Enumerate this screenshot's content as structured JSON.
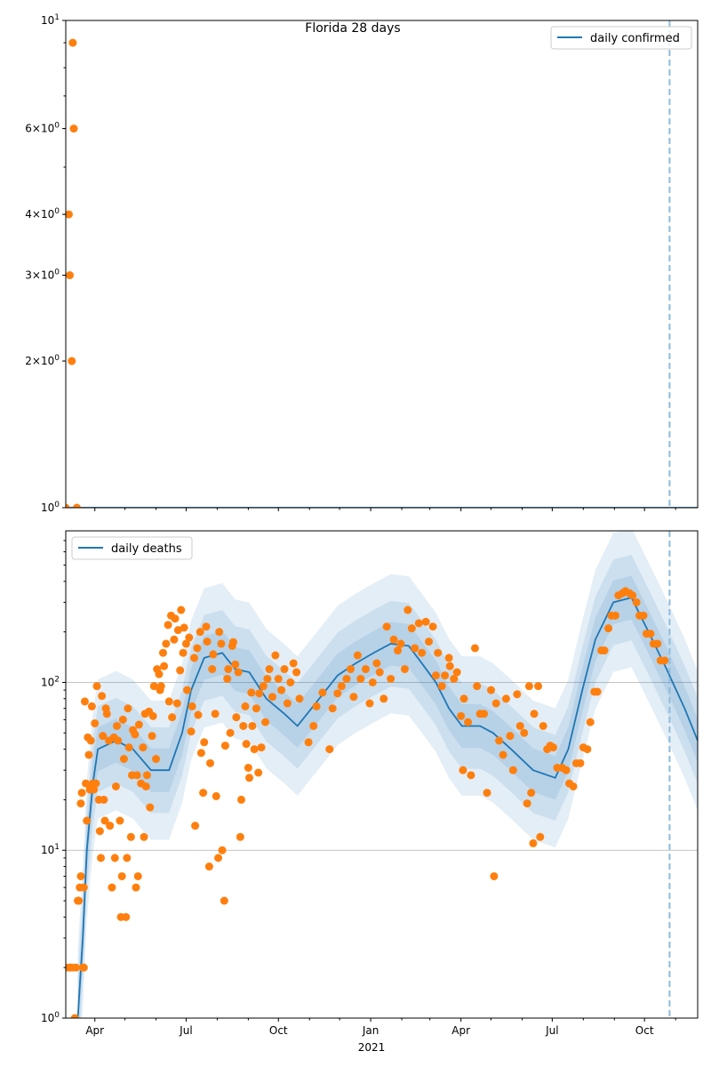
{
  "chart_data": [
    {
      "type": "scatter+line",
      "title": "Florida 28 days",
      "yscale": "log",
      "ylim": [
        1,
        10
      ],
      "xlim_days_since_2020_03_01": [
        2,
        632
      ],
      "legend": {
        "label": "daily confirmed",
        "placement": "top-right"
      },
      "yticks": [
        {
          "value": 10,
          "base": "10",
          "exp": "1"
        },
        {
          "value": 6,
          "base": "6×10",
          "exp": "0"
        },
        {
          "value": 4,
          "base": "4×10",
          "exp": "0"
        },
        {
          "value": 3,
          "base": "3×10",
          "exp": "0"
        },
        {
          "value": 2,
          "base": "2×10",
          "exp": "0"
        },
        {
          "value": 1,
          "base": "10",
          "exp": "0"
        }
      ],
      "line": [
        [
          2,
          1
        ],
        [
          632,
          1
        ]
      ],
      "bands": [],
      "points": [
        [
          2,
          1
        ],
        [
          5,
          4
        ],
        [
          6,
          3
        ],
        [
          8,
          2
        ],
        [
          9,
          9
        ],
        [
          10,
          6
        ],
        [
          13,
          1
        ]
      ],
      "vline_day": 604
    },
    {
      "type": "scatter+line",
      "title": "",
      "yscale": "log",
      "ylim": [
        1,
        800
      ],
      "xlim_days_since_2020_03_01": [
        2,
        632
      ],
      "legend": {
        "label": "daily deaths",
        "placement": "top-left"
      },
      "grid": "horizontal-major",
      "yticks": [
        {
          "value": 100,
          "base": "10",
          "exp": "2"
        },
        {
          "value": 10,
          "base": "10",
          "exp": "1"
        },
        {
          "value": 1,
          "base": "10",
          "exp": "0"
        }
      ],
      "line": [
        [
          14,
          1
        ],
        [
          19,
          3
        ],
        [
          23,
          10
        ],
        [
          29,
          25
        ],
        [
          34,
          40
        ],
        [
          52,
          45
        ],
        [
          69,
          40
        ],
        [
          87,
          30
        ],
        [
          105,
          30
        ],
        [
          118,
          50
        ],
        [
          127,
          90
        ],
        [
          140,
          140
        ],
        [
          158,
          150
        ],
        [
          171,
          120
        ],
        [
          185,
          115
        ],
        [
          202,
          80
        ],
        [
          220,
          65
        ],
        [
          233,
          55
        ],
        [
          251,
          75
        ],
        [
          273,
          110
        ],
        [
          291,
          130
        ],
        [
          309,
          150
        ],
        [
          326,
          170
        ],
        [
          344,
          165
        ],
        [
          357,
          130
        ],
        [
          371,
          100
        ],
        [
          384,
          70
        ],
        [
          397,
          55
        ],
        [
          415,
          55
        ],
        [
          428,
          50
        ],
        [
          446,
          40
        ],
        [
          468,
          30
        ],
        [
          490,
          27
        ],
        [
          503,
          40
        ],
        [
          517,
          90
        ],
        [
          530,
          180
        ],
        [
          548,
          300
        ],
        [
          566,
          320
        ],
        [
          583,
          200
        ],
        [
          601,
          120
        ],
        [
          619,
          70
        ],
        [
          632,
          45
        ]
      ],
      "band_factors": [
        1.35,
        1.8,
        2.6
      ],
      "points": [
        [
          2,
          2
        ],
        [
          6,
          2
        ],
        [
          8,
          2
        ],
        [
          11,
          1
        ],
        [
          12,
          2
        ],
        [
          14,
          5
        ],
        [
          15,
          5
        ],
        [
          16,
          6
        ],
        [
          17,
          7
        ],
        [
          17,
          19
        ],
        [
          18,
          22
        ],
        [
          19,
          2
        ],
        [
          20,
          2
        ],
        [
          20,
          6
        ],
        [
          21,
          77
        ],
        [
          22,
          25
        ],
        [
          23,
          15
        ],
        [
          24,
          47
        ],
        [
          25,
          37
        ],
        [
          26,
          23
        ],
        [
          27,
          45
        ],
        [
          28,
          72
        ],
        [
          29,
          25
        ],
        [
          30,
          23
        ],
        [
          31,
          57
        ],
        [
          32,
          25
        ],
        [
          33,
          95
        ],
        [
          35,
          20
        ],
        [
          36,
          13
        ],
        [
          37,
          9
        ],
        [
          38,
          83
        ],
        [
          39,
          48
        ],
        [
          40,
          20
        ],
        [
          41,
          15
        ],
        [
          42,
          70
        ],
        [
          43,
          65
        ],
        [
          45,
          45
        ],
        [
          46,
          14
        ],
        [
          48,
          6
        ],
        [
          50,
          47
        ],
        [
          51,
          9
        ],
        [
          52,
          24
        ],
        [
          53,
          55
        ],
        [
          54,
          45
        ],
        [
          56,
          15
        ],
        [
          57,
          4
        ],
        [
          58,
          7
        ],
        [
          59,
          60
        ],
        [
          60,
          35
        ],
        [
          62,
          4
        ],
        [
          63,
          9
        ],
        [
          64,
          70
        ],
        [
          65,
          41
        ],
        [
          67,
          12
        ],
        [
          68,
          28
        ],
        [
          69,
          52
        ],
        [
          71,
          49
        ],
        [
          72,
          6
        ],
        [
          73,
          28
        ],
        [
          74,
          7
        ],
        [
          75,
          56
        ],
        [
          77,
          25
        ],
        [
          79,
          41
        ],
        [
          80,
          12
        ],
        [
          81,
          65
        ],
        [
          82,
          24
        ],
        [
          83,
          28
        ],
        [
          85,
          67
        ],
        [
          86,
          18
        ],
        [
          88,
          48
        ],
        [
          89,
          63
        ],
        [
          90,
          95
        ],
        [
          92,
          35
        ],
        [
          93,
          120
        ],
        [
          95,
          112
        ],
        [
          96,
          90
        ],
        [
          97,
          95
        ],
        [
          99,
          150
        ],
        [
          100,
          125
        ],
        [
          102,
          170
        ],
        [
          104,
          220
        ],
        [
          105,
          77
        ],
        [
          107,
          250
        ],
        [
          108,
          62
        ],
        [
          110,
          180
        ],
        [
          111,
          240
        ],
        [
          113,
          75
        ],
        [
          114,
          205
        ],
        [
          116,
          118
        ],
        [
          117,
          270
        ],
        [
          119,
          150
        ],
        [
          120,
          212
        ],
        [
          122,
          170
        ],
        [
          123,
          90
        ],
        [
          125,
          185
        ],
        [
          127,
          51
        ],
        [
          128,
          72
        ],
        [
          130,
          140
        ],
        [
          131,
          14
        ],
        [
          133,
          160
        ],
        [
          134,
          64
        ],
        [
          136,
          200
        ],
        [
          137,
          38
        ],
        [
          139,
          22
        ],
        [
          140,
          44
        ],
        [
          142,
          215
        ],
        [
          143,
          175
        ],
        [
          145,
          8
        ],
        [
          146,
          33
        ],
        [
          148,
          120
        ],
        [
          149,
          147
        ],
        [
          151,
          65
        ],
        [
          152,
          21
        ],
        [
          154,
          9
        ],
        [
          155,
          200
        ],
        [
          157,
          170
        ],
        [
          158,
          10
        ],
        [
          160,
          5
        ],
        [
          161,
          42
        ],
        [
          163,
          105
        ],
        [
          164,
          120
        ],
        [
          166,
          50
        ],
        [
          168,
          165
        ],
        [
          169,
          174
        ],
        [
          171,
          128
        ],
        [
          172,
          62
        ],
        [
          174,
          115
        ],
        [
          176,
          12
        ],
        [
          177,
          20
        ],
        [
          179,
          55
        ],
        [
          181,
          72
        ],
        [
          182,
          43
        ],
        [
          184,
          31
        ],
        [
          185,
          27
        ],
        [
          187,
          87
        ],
        [
          188,
          55
        ],
        [
          190,
          40
        ],
        [
          192,
          70
        ],
        [
          194,
          29
        ],
        [
          195,
          86
        ],
        [
          197,
          41
        ],
        [
          199,
          95
        ],
        [
          201,
          58
        ],
        [
          203,
          105
        ],
        [
          205,
          120
        ],
        [
          208,
          82
        ],
        [
          211,
          145
        ],
        [
          214,
          105
        ],
        [
          217,
          90
        ],
        [
          220,
          120
        ],
        [
          223,
          75
        ],
        [
          226,
          100
        ],
        [
          229,
          130
        ],
        [
          232,
          115
        ],
        [
          235,
          80
        ],
        [
          244,
          44
        ],
        [
          249,
          55
        ],
        [
          252,
          72
        ],
        [
          258,
          87
        ],
        [
          265,
          40
        ],
        [
          268,
          70
        ],
        [
          273,
          86
        ],
        [
          277,
          95
        ],
        [
          282,
          105
        ],
        [
          286,
          120
        ],
        [
          289,
          82
        ],
        [
          293,
          145
        ],
        [
          296,
          105
        ],
        [
          301,
          120
        ],
        [
          305,
          75
        ],
        [
          308,
          100
        ],
        [
          312,
          130
        ],
        [
          315,
          115
        ],
        [
          319,
          80
        ],
        [
          322,
          215
        ],
        [
          326,
          105
        ],
        [
          329,
          180
        ],
        [
          333,
          155
        ],
        [
          336,
          170
        ],
        [
          340,
          120
        ],
        [
          343,
          270
        ],
        [
          347,
          210
        ],
        [
          350,
          160
        ],
        [
          354,
          225
        ],
        [
          357,
          150
        ],
        [
          361,
          230
        ],
        [
          364,
          175
        ],
        [
          368,
          215
        ],
        [
          371,
          110
        ],
        [
          373,
          150
        ],
        [
          377,
          95
        ],
        [
          380,
          110
        ],
        [
          384,
          140
        ],
        [
          385,
          125
        ],
        [
          389,
          105
        ],
        [
          392,
          115
        ],
        [
          396,
          63
        ],
        [
          398,
          30
        ],
        [
          399,
          80
        ],
        [
          403,
          58
        ],
        [
          406,
          28
        ],
        [
          410,
          160
        ],
        [
          412,
          95
        ],
        [
          415,
          65
        ],
        [
          419,
          65
        ],
        [
          422,
          22
        ],
        [
          426,
          90
        ],
        [
          429,
          7
        ],
        [
          431,
          75
        ],
        [
          434,
          45
        ],
        [
          438,
          37
        ],
        [
          441,
          80
        ],
        [
          445,
          48
        ],
        [
          448,
          30
        ],
        [
          452,
          85
        ],
        [
          455,
          55
        ],
        [
          459,
          50
        ],
        [
          462,
          19
        ],
        [
          464,
          95
        ],
        [
          466,
          22
        ],
        [
          468,
          11
        ],
        [
          469,
          65
        ],
        [
          473,
          95
        ],
        [
          475,
          12
        ],
        [
          478,
          55
        ],
        [
          482,
          40
        ],
        [
          485,
          42
        ],
        [
          488,
          41
        ],
        [
          492,
          31
        ],
        [
          497,
          31
        ],
        [
          501,
          30
        ],
        [
          504,
          25
        ],
        [
          508,
          24
        ],
        [
          511,
          33
        ],
        [
          515,
          33
        ],
        [
          518,
          41
        ],
        [
          522,
          40
        ],
        [
          525,
          58
        ],
        [
          529,
          88
        ],
        [
          532,
          88
        ],
        [
          536,
          155
        ],
        [
          539,
          155
        ],
        [
          543,
          210
        ],
        [
          546,
          250
        ],
        [
          550,
          250
        ],
        [
          553,
          330
        ],
        [
          557,
          340
        ],
        [
          560,
          350
        ],
        [
          564,
          340
        ],
        [
          567,
          330
        ],
        [
          571,
          300
        ],
        [
          574,
          250
        ],
        [
          578,
          250
        ],
        [
          581,
          195
        ],
        [
          585,
          195
        ],
        [
          588,
          170
        ],
        [
          592,
          170
        ],
        [
          595,
          135
        ],
        [
          599,
          135
        ]
      ],
      "vline_day": 604
    }
  ],
  "x_axis": {
    "ticks": [
      {
        "day": 31,
        "label": "Apr"
      },
      {
        "day": 122,
        "label": "Jul"
      },
      {
        "day": 214,
        "label": "Oct"
      },
      {
        "day": 306,
        "label": "Jan"
      },
      {
        "day": 396,
        "label": "Apr"
      },
      {
        "day": 487,
        "label": "Jul"
      },
      {
        "day": 579,
        "label": "Oct"
      }
    ],
    "minor_ticks": [
      61,
      92,
      153,
      184,
      245,
      275,
      337,
      365,
      426,
      457,
      518,
      549,
      610
    ],
    "year_label": "2021",
    "year_label_day": 306
  },
  "colors": {
    "line": "#1f77b4",
    "points": "#ff7f0e",
    "band": "#1f77b4",
    "vline": "#8ebbdc",
    "grid": "#b0b0b0"
  }
}
